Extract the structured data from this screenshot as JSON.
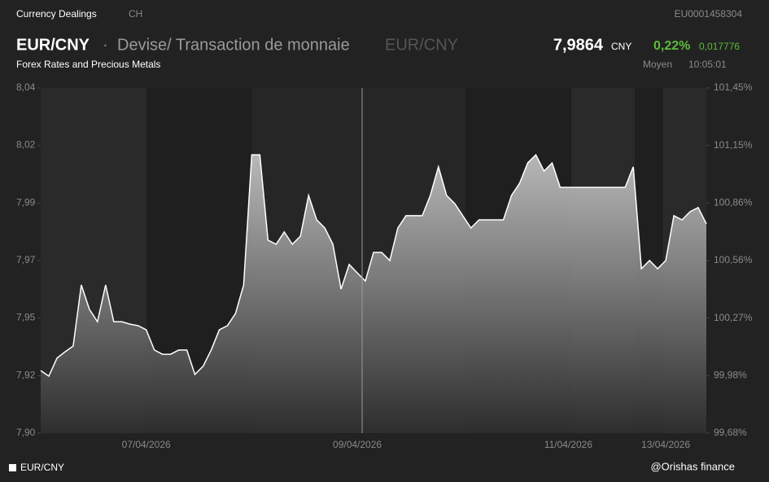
{
  "header": {
    "section": "Currency Dealings",
    "country": "CH",
    "isin": "EU0001458304",
    "symbol": "EUR/CNY",
    "separator": "·",
    "name": "Devise/ Transaction de monnaie",
    "pair": "EUR/CNY",
    "subtitle": "Forex Rates and Precious Metals",
    "price": "7,9864",
    "currency": "CNY",
    "change_pct": "0,22%",
    "change": "0,017776",
    "price_type": "Moyen",
    "time": "10:05:01"
  },
  "footer": {
    "credit": "@Orishas finance"
  },
  "chart_data": {
    "type": "area",
    "categories": [
      null,
      null,
      null,
      null,
      null,
      null,
      null,
      null,
      null,
      null,
      null,
      null,
      null,
      "07/04/2026",
      null,
      null,
      null,
      null,
      null,
      null,
      null,
      null,
      null,
      null,
      null,
      null,
      null,
      null,
      null,
      null,
      null,
      null,
      null,
      null,
      null,
      null,
      null,
      null,
      null,
      "09/04/2026",
      null,
      null,
      null,
      null,
      null,
      null,
      null,
      null,
      null,
      null,
      null,
      null,
      null,
      null,
      null,
      null,
      null,
      null,
      null,
      null,
      null,
      null,
      null,
      null,
      null,
      "11/04/2026",
      null,
      null,
      null,
      null,
      null,
      null,
      null,
      null,
      null,
      null,
      null,
      "13/04/2026",
      null,
      null,
      null,
      null,
      null
    ],
    "series": [
      {
        "name": "EUR/CNY",
        "color": "#ffffff",
        "values": [
          7.9254,
          7.9231,
          7.9304,
          7.933,
          7.9353,
          7.9601,
          7.9502,
          7.9452,
          7.9601,
          7.9452,
          7.9452,
          7.9442,
          7.9436,
          7.9419,
          7.9337,
          7.932,
          7.932,
          7.9337,
          7.9337,
          7.9238,
          7.9271,
          7.9337,
          7.9419,
          7.9436,
          7.9485,
          7.9601,
          8.0129,
          8.0129,
          7.9783,
          7.9766,
          7.9816,
          7.9766,
          7.9799,
          7.9964,
          7.9865,
          7.9832,
          7.9766,
          7.9584,
          7.9684,
          7.965,
          7.9617,
          7.9733,
          7.9733,
          7.97,
          7.9832,
          7.9882,
          7.9882,
          7.9882,
          7.9964,
          8.008,
          7.9964,
          7.9931,
          7.9882,
          7.9832,
          7.9865,
          7.9865,
          7.9865,
          7.9865,
          7.9964,
          8.0014,
          8.0096,
          8.0129,
          8.0063,
          8.0096,
          7.9997,
          7.9997,
          7.9997,
          7.9997,
          7.9997,
          7.9997,
          7.9997,
          7.9997,
          7.9997,
          8.008,
          7.9667,
          7.97,
          7.9667,
          7.97,
          7.9882,
          7.9865,
          7.9898,
          7.9915,
          7.9849
        ]
      }
    ],
    "ylim": [
      7.9,
      8.04
    ],
    "yticks": [
      {
        "value": 7.9,
        "label": "7,90"
      },
      {
        "value": 7.9233,
        "label": "7,92"
      },
      {
        "value": 7.9467,
        "label": "7,95"
      },
      {
        "value": 7.97,
        "label": "7,97"
      },
      {
        "value": 7.9933,
        "label": "7,99"
      },
      {
        "value": 8.0167,
        "label": "8,02"
      },
      {
        "value": 8.04,
        "label": "8,04"
      }
    ],
    "y2lim": [
      99.68,
      101.45
    ],
    "y2ticks": [
      {
        "value": 99.68,
        "label": "99,68%"
      },
      {
        "value": 99.975,
        "label": "99,98%"
      },
      {
        "value": 100.27,
        "label": "100,27%"
      },
      {
        "value": 100.565,
        "label": "100,56%"
      },
      {
        "value": 100.86,
        "label": "100,86%"
      },
      {
        "value": 101.155,
        "label": "101,15%"
      },
      {
        "value": 101.45,
        "label": "101,45%"
      }
    ]
  }
}
